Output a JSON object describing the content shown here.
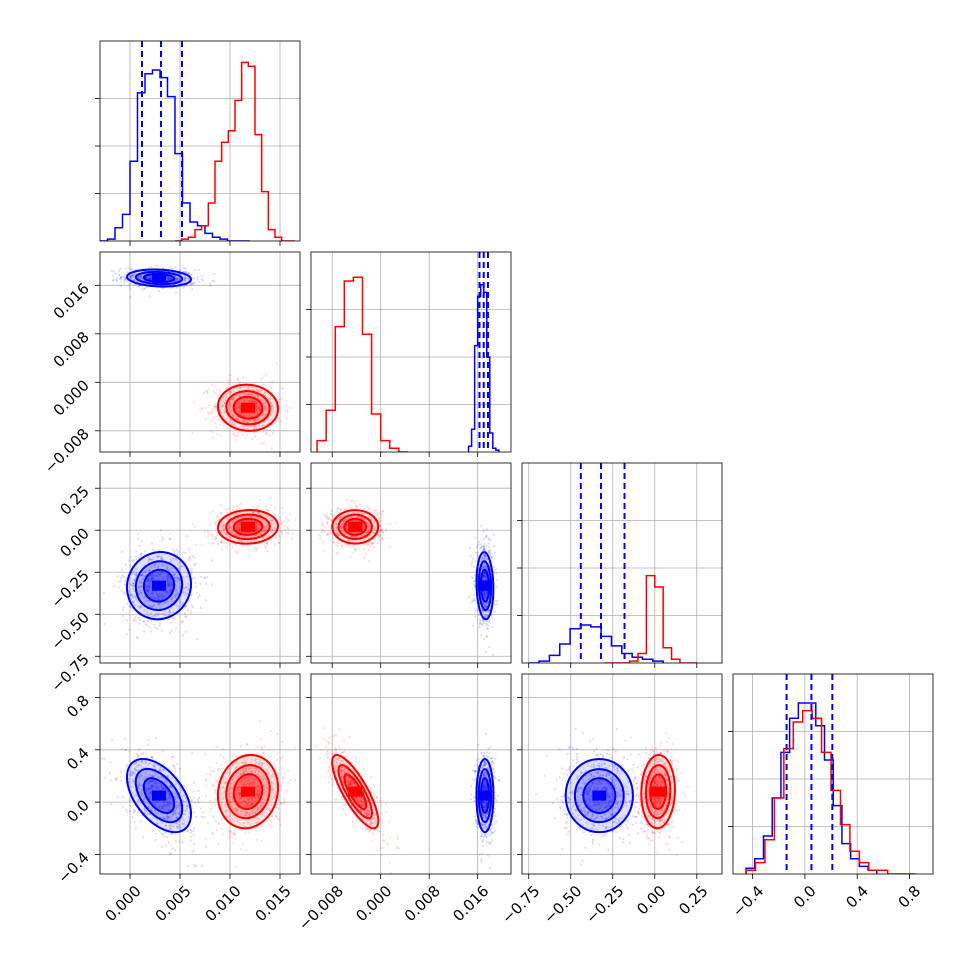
{
  "chart_data": {
    "type": "corner",
    "grid": true,
    "colors": {
      "series_a": "#0000ff",
      "series_b": "#ff0000",
      "quantile_lines": "#0000ff"
    },
    "parameters": [
      {
        "ticks": [
          "0.000",
          "0.005",
          "0.010",
          "0.015"
        ],
        "tick_values": [
          0.0,
          0.005,
          0.01,
          0.015
        ],
        "range": [
          -0.003,
          0.017
        ]
      },
      {
        "ticks": [
          "−0.008",
          "0.000",
          "0.008",
          "0.016"
        ],
        "tick_values": [
          -0.008,
          0.0,
          0.008,
          0.016
        ],
        "range": [
          -0.0115,
          0.0215
        ]
      },
      {
        "ticks": [
          "−0.75",
          "−0.50",
          "−0.25",
          "0.00",
          "0.25"
        ],
        "tick_values": [
          -0.75,
          -0.5,
          -0.25,
          0.0,
          0.25
        ],
        "range": [
          -0.79,
          0.4
        ]
      },
      {
        "ticks": [
          "−0.4",
          "0.0",
          "0.4",
          "0.8"
        ],
        "tick_values": [
          -0.4,
          0.0,
          0.4,
          0.8
        ],
        "range": [
          -0.55,
          0.98
        ]
      }
    ],
    "series": [
      {
        "color": "#0000ff",
        "mean": [
          0.0029,
          0.0172,
          -0.33,
          0.05
        ],
        "sd": [
          0.0016,
          0.0007,
          0.1,
          0.14
        ],
        "corr": [
          [
            0,
            1,
            -0.15
          ],
          [
            0,
            3,
            -0.5
          ],
          [
            1,
            2,
            -0.1
          ],
          [
            2,
            3,
            0.0
          ],
          [
            1,
            3,
            0.0
          ],
          [
            0,
            2,
            0.05
          ]
        ],
        "quantiles": [
          [
            0.0012,
            0.0031,
            0.0052
          ],
          [
            0.0163,
            0.017,
            0.0177
          ],
          [
            -0.44,
            -0.32,
            -0.18
          ],
          [
            -0.14,
            0.05,
            0.21
          ]
        ],
        "hist": [
          {
            "lo": -0.003,
            "hi": 0.012,
            "counts": [
              0,
              0.01,
              0.07,
              0.14,
              0.42,
              0.78,
              0.88,
              0.9,
              0.86,
              0.76,
              0.46,
              0.2,
              0.1,
              0.08,
              0.04,
              0.02,
              0.01,
              0,
              0,
              0
            ]
          },
          {
            "lo": 0.0145,
            "hi": 0.0195,
            "counts": [
              0.03,
              0.12,
              0.56,
              0.82,
              0.88,
              0.84,
              0.5,
              0.1,
              0.02,
              0.01
            ]
          },
          {
            "lo": -0.75,
            "hi": 0.05,
            "counts": [
              0,
              0.01,
              0.04,
              0.1,
              0.18,
              0.2,
              0.19,
              0.14,
              0.09,
              0.05,
              0.03,
              0.02,
              0.01
            ]
          },
          {
            "lo": -0.45,
            "hi": 0.55,
            "counts": [
              0.03,
              0.08,
              0.2,
              0.4,
              0.64,
              0.82,
              0.9,
              0.9,
              0.78,
              0.6,
              0.36,
              0.16,
              0.08,
              0.04,
              0.02
            ]
          }
        ]
      },
      {
        "color": "#ff0000",
        "mean": [
          0.0118,
          -0.0042,
          0.02,
          0.08
        ],
        "sd": [
          0.0015,
          0.0019,
          0.05,
          0.14
        ],
        "corr": [
          [
            0,
            1,
            -0.05
          ],
          [
            1,
            2,
            0.0
          ],
          [
            1,
            3,
            -0.8
          ],
          [
            0,
            3,
            0.1
          ],
          [
            0,
            2,
            0.05
          ],
          [
            2,
            3,
            0.05
          ]
        ],
        "hist": [
          {
            "lo": 0.0045,
            "hi": 0.0165,
            "counts": [
              0,
              0.01,
              0.02,
              0.06,
              0.08,
              0.2,
              0.42,
              0.52,
              0.58,
              0.74,
              0.94,
              0.92,
              0.56,
              0.26,
              0.06,
              0.02,
              0,
              0
            ]
          },
          {
            "lo": -0.0105,
            "hi": 0.0045,
            "counts": [
              0.06,
              0.22,
              0.66,
              0.9,
              0.92,
              0.62,
              0.2,
              0.06,
              0.02,
              0
            ]
          },
          {
            "lo": -0.3,
            "hi": 0.25,
            "counts": [
              0,
              0,
              0,
              0.01,
              0.05,
              0.46,
              0.4,
              0.08,
              0.02,
              0,
              0
            ]
          },
          {
            "lo": -0.45,
            "hi": 0.85,
            "counts": [
              0.02,
              0.06,
              0.18,
              0.4,
              0.66,
              0.8,
              0.86,
              0.82,
              0.64,
              0.44,
              0.26,
              0.12,
              0.06,
              0.02,
              0.02,
              0,
              0,
              0
            ]
          }
        ]
      }
    ]
  }
}
